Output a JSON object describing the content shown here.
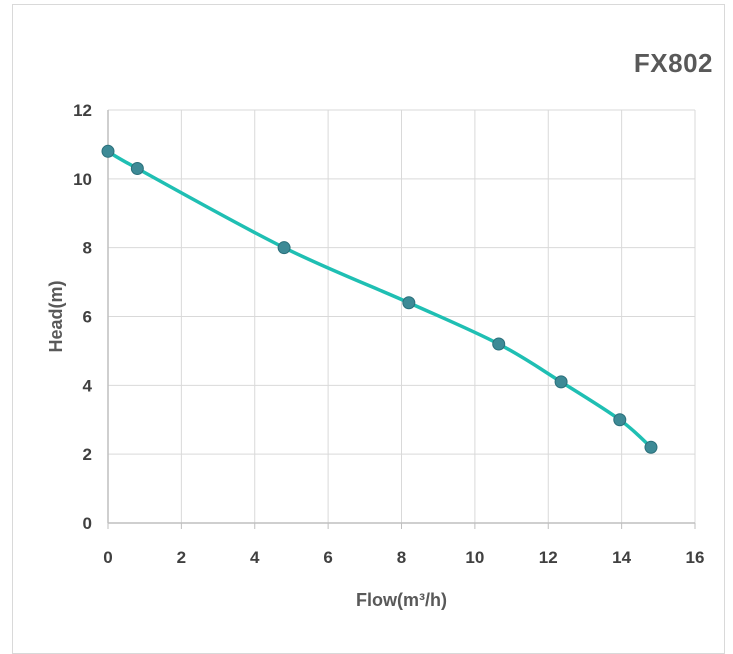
{
  "chart_data": {
    "type": "line",
    "title": "FX802",
    "xlabel": "Flow(m³/h)",
    "ylabel": "Head(m)",
    "xlim": [
      0,
      16
    ],
    "ylim": [
      0,
      12
    ],
    "xticks": [
      0,
      2,
      4,
      6,
      8,
      10,
      12,
      14,
      16
    ],
    "yticks": [
      0,
      2,
      4,
      6,
      8,
      10,
      12
    ],
    "grid": true,
    "series": [
      {
        "color": "#1fbfb3",
        "marker_color": "#3d8a96",
        "x": [
          0,
          0.8,
          4.8,
          8.2,
          10.65,
          12.35,
          13.95,
          14.8
        ],
        "y": [
          10.8,
          10.3,
          8.0,
          6.4,
          5.2,
          4.1,
          3.0,
          2.2
        ]
      }
    ]
  }
}
